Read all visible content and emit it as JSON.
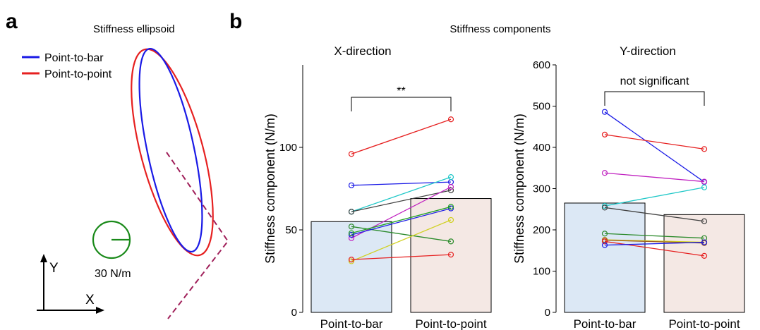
{
  "panel_a": {
    "letter": "a",
    "title": "Stiffness ellipsoid",
    "legend": [
      {
        "label": "Point-to-bar",
        "color": "#1a1ae6"
      },
      {
        "label": "Point-to-point",
        "color": "#e62020"
      }
    ],
    "scale_label": "30 N/m",
    "axis_x_label": "X",
    "axis_y_label": "Y"
  },
  "panel_b": {
    "letter": "b",
    "title": "Stiffness components"
  },
  "chart_data": [
    {
      "type": "bar",
      "title": "X-direction",
      "ylabel": "Stiffness component (N/m)",
      "categories": [
        "Point-to-bar",
        "Point-to-point"
      ],
      "values": [
        55,
        69
      ],
      "ylim": [
        0,
        150
      ],
      "yticks": [
        0,
        50,
        100
      ],
      "bar_colors": [
        "#dce8f5",
        "#f4e8e4"
      ],
      "significance": "**",
      "subjects": [
        {
          "color": "#e62020",
          "values": [
            96,
            117
          ]
        },
        {
          "color": "#1a1ae6",
          "values": [
            77,
            79
          ]
        },
        {
          "color": "#20c8c8",
          "values": [
            61,
            82
          ]
        },
        {
          "color": "#404040",
          "values": [
            61,
            74
          ]
        },
        {
          "color": "#c020c0",
          "values": [
            45,
            76
          ]
        },
        {
          "color": "#2a8a2a",
          "values": [
            52,
            43
          ]
        },
        {
          "color": "#1a1ae6",
          "values": [
            47,
            63
          ]
        },
        {
          "color": "#20a020",
          "values": [
            48,
            64
          ]
        },
        {
          "color": "#d0d020",
          "values": [
            31,
            56
          ]
        },
        {
          "color": "#e62020",
          "values": [
            32,
            35
          ]
        }
      ]
    },
    {
      "type": "bar",
      "title": "Y-direction",
      "ylabel": "Stiffness component (N/m)",
      "categories": [
        "Point-to-bar",
        "Point-to-point"
      ],
      "values": [
        265,
        237
      ],
      "ylim": [
        0,
        600
      ],
      "yticks": [
        0,
        100,
        200,
        300,
        400,
        500,
        600
      ],
      "bar_colors": [
        "#dce8f5",
        "#f4e8e4"
      ],
      "significance": "not significant",
      "subjects": [
        {
          "color": "#1a1ae6",
          "values": [
            486,
            316
          ]
        },
        {
          "color": "#e62020",
          "values": [
            431,
            396
          ]
        },
        {
          "color": "#c020c0",
          "values": [
            338,
            317
          ]
        },
        {
          "color": "#20c8c8",
          "values": [
            258,
            303
          ]
        },
        {
          "color": "#404040",
          "values": [
            254,
            221
          ]
        },
        {
          "color": "#2a8a2a",
          "values": [
            191,
            180
          ]
        },
        {
          "color": "#d0d020",
          "values": [
            176,
            170
          ]
        },
        {
          "color": "#a06020",
          "values": [
            175,
            168
          ]
        },
        {
          "color": "#e62020",
          "values": [
            172,
            137
          ]
        },
        {
          "color": "#1a1ae6",
          "values": [
            163,
            170
          ]
        }
      ]
    }
  ]
}
